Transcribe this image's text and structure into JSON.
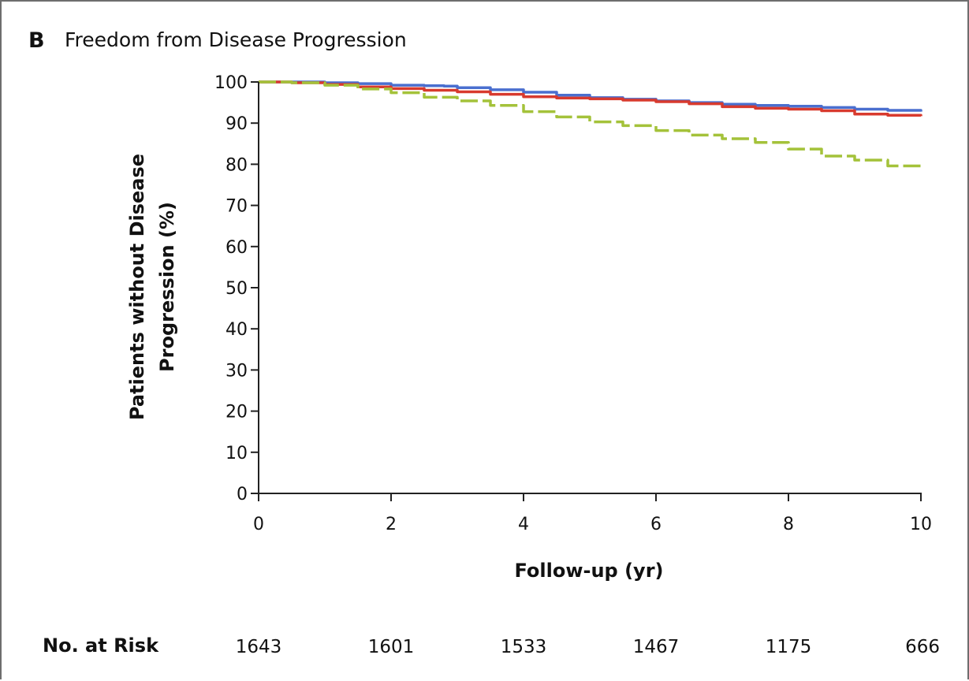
{
  "figure": {
    "panel_letter": "B",
    "panel_title": "Freedom from Disease Progression"
  },
  "colors": {
    "series_blue": "#4a6fcf",
    "series_red": "#d83a2e",
    "series_green": "#a4c23a",
    "axis": "#222222"
  },
  "chart_data": {
    "type": "line",
    "title": "Freedom from Disease Progression",
    "xlabel": "Follow-up (yr)",
    "ylabel_lines": [
      "Patients without Disease",
      "Progression (%)"
    ],
    "xlim": [
      0,
      10
    ],
    "ylim": [
      0,
      100
    ],
    "x_ticks": [
      0,
      2,
      4,
      6,
      8,
      10
    ],
    "y_ticks": [
      0,
      10,
      20,
      30,
      40,
      50,
      60,
      70,
      80,
      90,
      100
    ],
    "grid": false,
    "series": [
      {
        "color": "#4a6fcf",
        "style": "solid",
        "x": [
          0,
          0.5,
          1,
          1.5,
          2,
          2.5,
          2.8,
          3,
          3.5,
          4,
          4.5,
          5,
          5.5,
          6,
          6.5,
          7,
          7.5,
          8,
          8.5,
          9,
          9.5,
          10
        ],
        "y": [
          100,
          100,
          99.8,
          99.6,
          99.2,
          99.1,
          99.0,
          98.6,
          98.1,
          97.5,
          96.8,
          96.2,
          95.8,
          95.4,
          95.0,
          94.6,
          94.3,
          94.1,
          93.8,
          93.4,
          93.1,
          92.8
        ]
      },
      {
        "color": "#d83a2e",
        "style": "solid",
        "x": [
          0,
          0.5,
          1,
          1.5,
          2,
          2.5,
          3,
          3.5,
          4,
          4.5,
          5,
          5.5,
          6,
          6.5,
          7,
          7.5,
          8,
          8.5,
          9,
          9.5,
          10
        ],
        "y": [
          100,
          99.8,
          99.4,
          98.8,
          98.4,
          98.0,
          97.6,
          97.0,
          96.4,
          96.1,
          95.9,
          95.6,
          95.2,
          94.7,
          94.0,
          93.6,
          93.4,
          93.0,
          92.2,
          91.9,
          91.7
        ]
      },
      {
        "color": "#a4c23a",
        "style": "dashed",
        "x": [
          0,
          0.5,
          1,
          1.5,
          2,
          2.5,
          3,
          3.5,
          4,
          4.5,
          5,
          5.5,
          6,
          6.5,
          7,
          7.5,
          8,
          8.5,
          9,
          9.5,
          10
        ],
        "y": [
          100,
          99.8,
          99.2,
          98.3,
          97.4,
          96.3,
          95.4,
          94.3,
          92.8,
          91.5,
          90.3,
          89.4,
          88.2,
          87.1,
          86.2,
          85.3,
          83.7,
          82.0,
          81.0,
          79.6,
          79.3
        ]
      }
    ]
  },
  "risk_table": {
    "label": "No. at Risk",
    "values": [
      "1643",
      "1601",
      "1533",
      "1467",
      "1175",
      "666"
    ]
  }
}
